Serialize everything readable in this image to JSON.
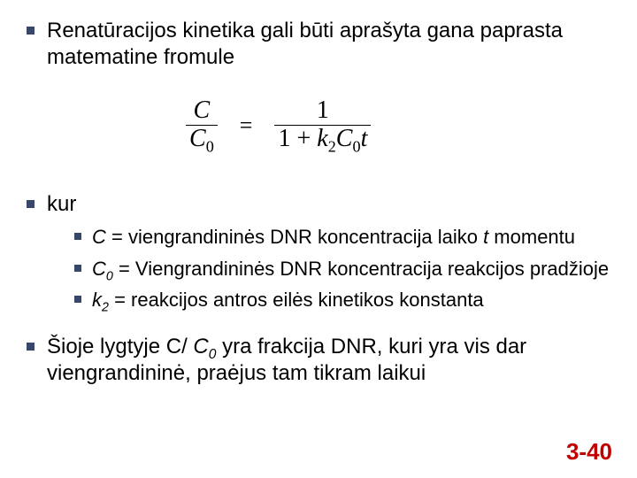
{
  "item1": {
    "text": "Renatūracijos kinetika gali būti aprašyta gana paprasta matematine fromule"
  },
  "formula": {
    "left_num": "C",
    "left_den_base": "C",
    "left_den_sub": "0",
    "eq": "=",
    "right_num": "1",
    "right_den_prefix": "1  +  ",
    "right_den_k": "k",
    "right_den_k_sub": "2",
    "right_den_C": "C",
    "right_den_C_sub": "0",
    "right_den_t": "t"
  },
  "item2": {
    "text": "kur"
  },
  "subitems": [
    {
      "sym": "C",
      "eq": " = viengrandininės DNR koncentracija laiko ",
      "tail_sym": "t",
      "tail": " momentu"
    },
    {
      "sym": "C",
      "sub": "0",
      "eq": " = Viengrandininės DNR koncentracija reakcijos pradžioje",
      "tail_sym": "",
      "tail": ""
    },
    {
      "sym": " k",
      "sub": "2",
      "eq": " = reakcijos antros eilės kinetikos konstanta",
      "tail_sym": "",
      "tail": ""
    }
  ],
  "item3": {
    "pre": "Šioje lygtyje C/ ",
    "c0_base": "C",
    "c0_sub": "0",
    "post": " yra frakcija DNR, kuri yra vis dar viengrandininė, praėjus tam tikram laikui"
  },
  "pageNumber": "3-40",
  "colors": {
    "bullet": "#36476a",
    "pagenum": "#c00000",
    "text": "#000000",
    "background": "#ffffff"
  }
}
